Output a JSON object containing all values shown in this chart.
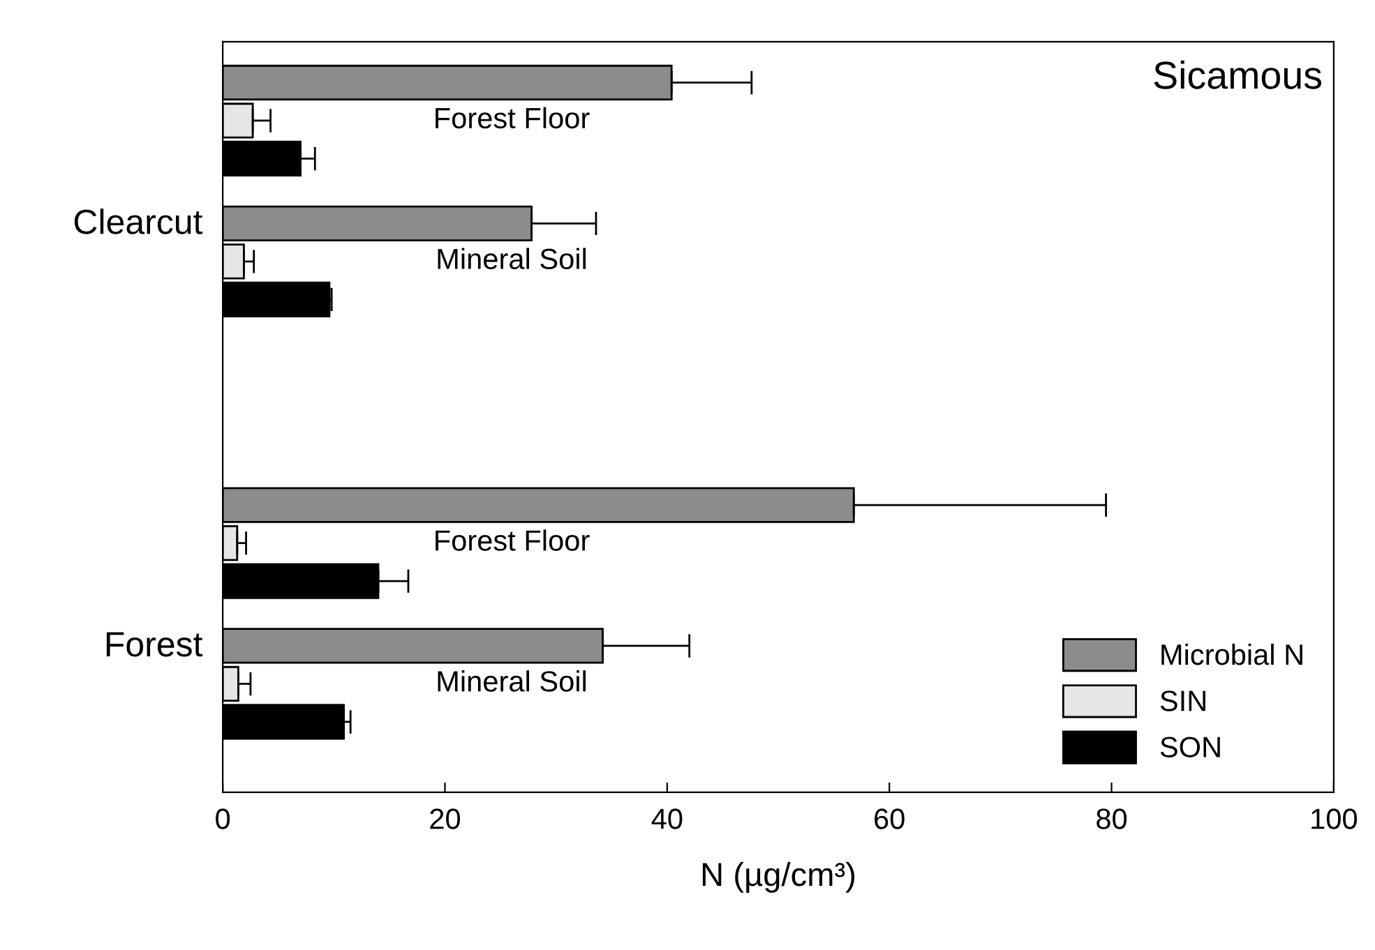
{
  "chart_data": {
    "type": "bar",
    "orientation": "horizontal",
    "title": "Sicamous",
    "xlabel": "N (µg/cm³)",
    "categories": [
      "Forest Floor",
      "Mineral Soil",
      null,
      "Forest Floor",
      "Mineral Soil"
    ],
    "series": [
      {
        "name": "Microbial N",
        "color": "#8c8c8c",
        "values": [
          40.4,
          27.8,
          null,
          56.8,
          34.2
        ],
        "errors": [
          [
            40.4,
            47.6
          ],
          [
            27.8,
            33.6
          ],
          null,
          [
            56.8,
            79.5
          ],
          [
            34.2,
            42.0
          ]
        ]
      },
      {
        "name": "SIN",
        "color": "#e6e6e6",
        "values": [
          2.7,
          1.9,
          null,
          1.3,
          1.4
        ],
        "errors": [
          [
            2.7,
            4.3
          ],
          [
            1.9,
            2.8
          ],
          null,
          [
            1.3,
            2.1
          ],
          [
            1.4,
            2.5
          ]
        ]
      },
      {
        "name": "SON",
        "color": "#000000",
        "values": [
          7.0,
          9.6,
          null,
          14.0,
          10.9
        ],
        "errors": [
          [
            7.0,
            8.3
          ],
          [
            9.6,
            9.8
          ],
          null,
          [
            14.0,
            16.7
          ],
          [
            10.9,
            11.5
          ]
        ]
      }
    ],
    "annotations": [
      "Clearcut",
      "Forest"
    ],
    "xlim": [
      0,
      100
    ],
    "xticks": [
      0,
      20,
      40,
      60,
      80,
      100
    ],
    "tick_labels": "x",
    "legend": "bottom right",
    "grid": false
  }
}
